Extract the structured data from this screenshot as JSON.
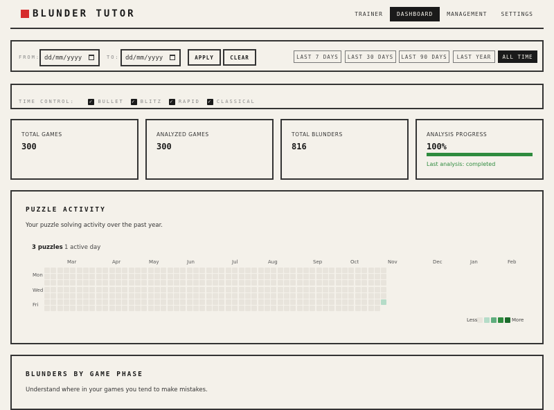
{
  "header": {
    "title": "BLUNDER TUTOR",
    "nav": [
      "TRAINER",
      "DASHBOARD",
      "MANAGEMENT",
      "SETTINGS"
    ],
    "active_nav": "DASHBOARD",
    "brand_color": "#d62b2b"
  },
  "filters": {
    "from_label": "FROM:",
    "to_label": "TO:",
    "from_placeholder": "dd/mm/yyyy",
    "to_placeholder": "dd/mm/yyyy",
    "apply": "APPLY",
    "clear": "CLEAR",
    "ranges": [
      "LAST 7 DAYS",
      "LAST 30 DAYS",
      "LAST 90 DAYS",
      "LAST YEAR",
      "ALL TIME"
    ],
    "active_range": "ALL TIME"
  },
  "time_control": {
    "label": "TIME CONTROL:",
    "options": [
      {
        "label": "BULLET",
        "checked": true
      },
      {
        "label": "BLITZ",
        "checked": true
      },
      {
        "label": "RAPID",
        "checked": true
      },
      {
        "label": "CLASSICAL",
        "checked": true
      }
    ]
  },
  "stats": [
    {
      "label": "TOTAL GAMES",
      "value": "300"
    },
    {
      "label": "ANALYZED GAMES",
      "value": "300"
    },
    {
      "label": "TOTAL BLUNDERS",
      "value": "816"
    },
    {
      "label": "ANALYSIS PROGRESS",
      "value": "100%",
      "progress": 100,
      "status": "Last analysis: completed",
      "status_color": "#2e8b3e"
    }
  ],
  "puzzle_activity": {
    "title": "PUZZLE ACTIVITY",
    "description": "Your puzzle solving activity over the past year.",
    "count": "3 puzzles",
    "active_days": "1 active day",
    "months": [
      "Mar",
      "Apr",
      "May",
      "Jun",
      "Jul",
      "Aug",
      "Sep",
      "Oct",
      "Nov",
      "Dec",
      "Jan",
      "Feb"
    ],
    "days": [
      "Mon",
      "Wed",
      "Fri"
    ],
    "weeks": 53,
    "last_week_days": 6,
    "active": [
      {
        "week": 52,
        "day": 5,
        "level": 1
      }
    ],
    "legend_less": "Less",
    "legend_more": "More",
    "levels": [
      "#e8e4dc",
      "#b5dcc8",
      "#5fae7e",
      "#2e8b3e",
      "#1b6b2c"
    ]
  },
  "blunders_phase": {
    "title": "BLUNDERS BY GAME PHASE",
    "description": "Understand where in your games you tend to make mistakes."
  }
}
